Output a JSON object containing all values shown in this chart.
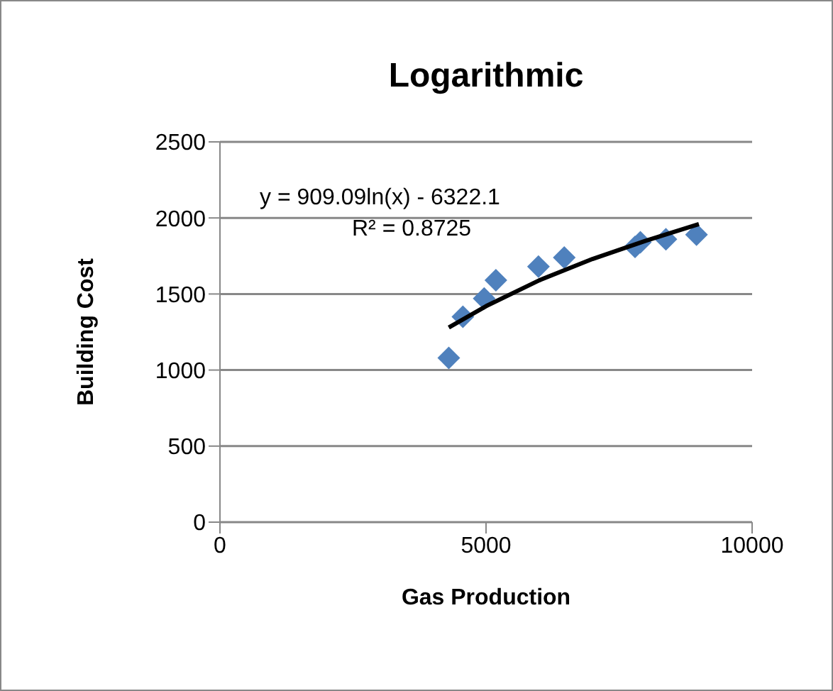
{
  "chart_data": {
    "type": "scatter",
    "title": "Logarithmic",
    "xlabel": "Gas Production",
    "ylabel": "Building Cost",
    "annotations": [
      "y = 909.09ln(x) - 6322.1",
      "R² = 0.8725"
    ],
    "xlim": [
      0,
      10000
    ],
    "xticks": [
      0,
      5000,
      10000
    ],
    "ylim": [
      0,
      2500
    ],
    "yticks": [
      0,
      500,
      1000,
      1500,
      2000,
      2500
    ],
    "grid": "y",
    "legend": false,
    "series": [
      {
        "color": "#4f81bd",
        "marker": "diamond",
        "x": [
          4300,
          4565,
          4965,
          5185,
          5985,
          6470,
          7800,
          7900,
          8380,
          8955
        ],
        "values": [
          1080,
          1350,
          1470,
          1590,
          1680,
          1740,
          1810,
          1840,
          1860,
          1890
        ]
      },
      {
        "type": "line",
        "color": "#000000",
        "marker": "none",
        "x": [
          4300,
          5000,
          6000,
          7000,
          8000,
          9000
        ],
        "values": [
          1280,
          1420,
          1590,
          1730,
          1850,
          1960
        ]
      }
    ]
  }
}
